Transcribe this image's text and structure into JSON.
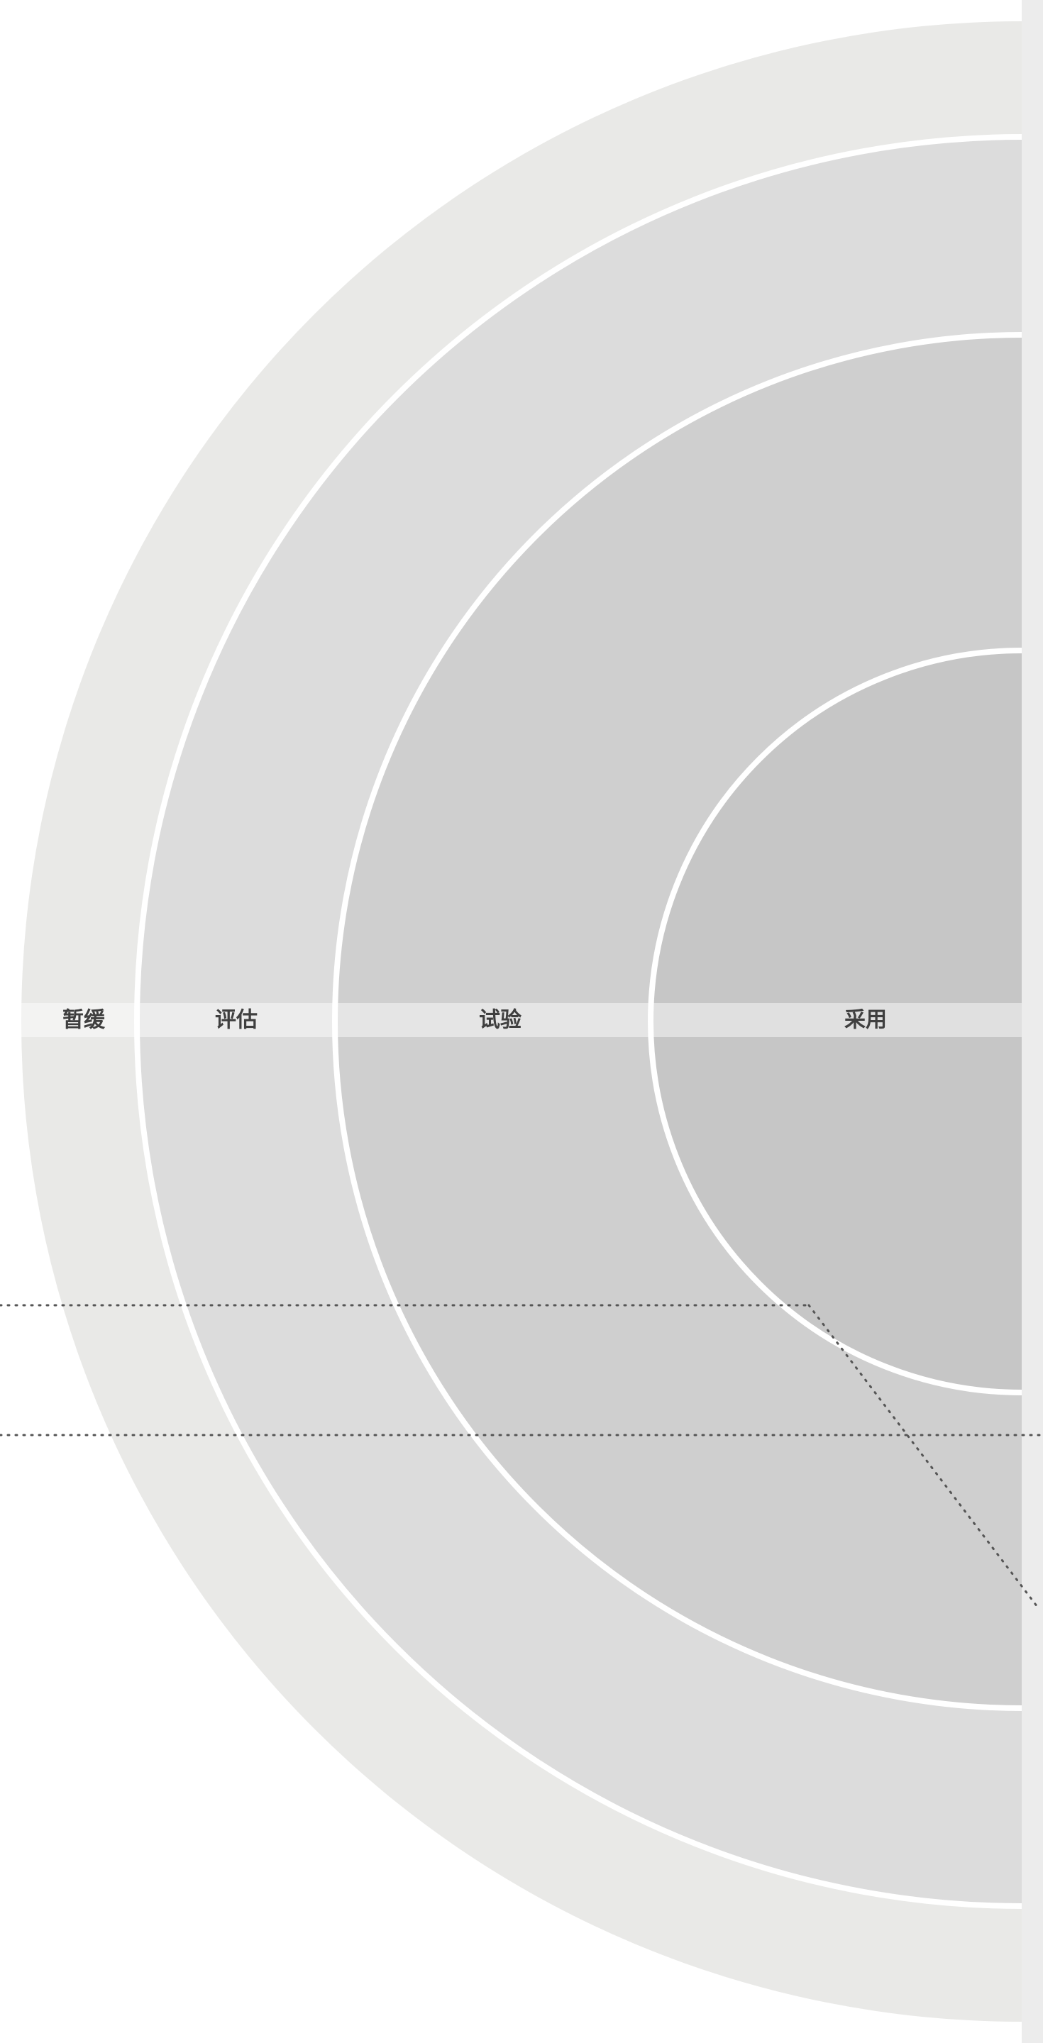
{
  "radar": {
    "rings": [
      {
        "key": "hold",
        "label": "暂缓",
        "fill": "#e9e9e7"
      },
      {
        "key": "assess",
        "label": "评估",
        "fill": "#dcdcdc"
      },
      {
        "key": "trial",
        "label": "试验",
        "fill": "#cfcfcf"
      },
      {
        "key": "adopt",
        "label": "采用",
        "fill": "#c6c6c6"
      }
    ],
    "colors": {
      "background": "#ffffff",
      "ring_divider": "#ffffff",
      "label_band": "#e6e6e6",
      "label_text": "#3f3f3f",
      "right_strip": "#ececec",
      "leader_line": "#555555"
    }
  }
}
